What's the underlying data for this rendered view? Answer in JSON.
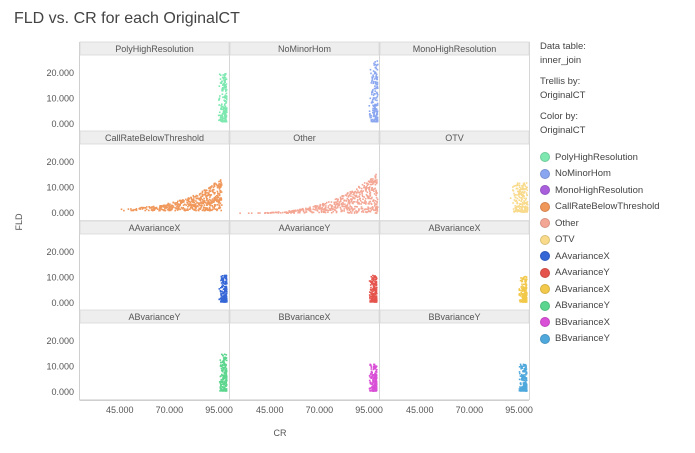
{
  "chart_title": "FLD vs. CR for each OriginalCT",
  "sidebar": {
    "data_table_label": "Data table:",
    "data_table_value": "inner_join",
    "trellis_label": "Trellis by:",
    "trellis_value": "OriginalCT",
    "color_label": "Color by:",
    "color_value": "OriginalCT"
  },
  "chart_data": {
    "type": "scatter",
    "trellis": true,
    "title": "FLD vs. CR for each OriginalCT",
    "xlabel": "CR",
    "ylabel": "FLD",
    "x_ticks": [
      "45.000",
      "70.000",
      "95.000"
    ],
    "y_ticks": [
      "0.000",
      "10.000",
      "20.000"
    ],
    "xlim": [
      25000,
      100000
    ],
    "ylim": [
      -3000,
      27000
    ],
    "legend_position": "right",
    "panels": [
      {
        "name": "PolyHighResolution",
        "color": "#7de8b0",
        "x_range": [
          94000,
          98500
        ],
        "y_range": [
          1000,
          20000
        ]
      },
      {
        "name": "NoMinorHom",
        "color": "#8aa6f0",
        "x_range": [
          94500,
          99000
        ],
        "y_range": [
          1000,
          25000
        ]
      },
      {
        "name": "MonoHighResolution",
        "color": "#a95fdc",
        "x_range": [],
        "y_range": []
      },
      {
        "name": "CallRateBelowThreshold",
        "color": "#f0975a",
        "x_range": [
          38000,
          96000
        ],
        "y_range": [
          1000,
          13000
        ]
      },
      {
        "name": "Other",
        "color": "#f4a694",
        "x_range": [
          26000,
          99000
        ],
        "y_range": [
          0,
          16000
        ]
      },
      {
        "name": "OTV",
        "color": "#f8da8a",
        "x_range": [
          90000,
          99000
        ],
        "y_range": [
          500,
          12000
        ]
      },
      {
        "name": "AAvarianceX",
        "color": "#3566d6",
        "x_range": [
          94500,
          98500
        ],
        "y_range": [
          500,
          11000
        ]
      },
      {
        "name": "AAvarianceY",
        "color": "#e5544c",
        "x_range": [
          94500,
          98500
        ],
        "y_range": [
          500,
          11000
        ]
      },
      {
        "name": "ABvarianceX",
        "color": "#f2c94a",
        "x_range": [
          94500,
          98500
        ],
        "y_range": [
          500,
          10500
        ]
      },
      {
        "name": "ABvarianceY",
        "color": "#5cd68e",
        "x_range": [
          94500,
          98500
        ],
        "y_range": [
          500,
          15000
        ]
      },
      {
        "name": "BBvarianceX",
        "color": "#d94fd6",
        "x_range": [
          94500,
          98500
        ],
        "y_range": [
          500,
          11000
        ]
      },
      {
        "name": "BBvarianceY",
        "color": "#4fa8dc",
        "x_range": [
          94500,
          98500
        ],
        "y_range": [
          500,
          11000
        ]
      }
    ]
  }
}
